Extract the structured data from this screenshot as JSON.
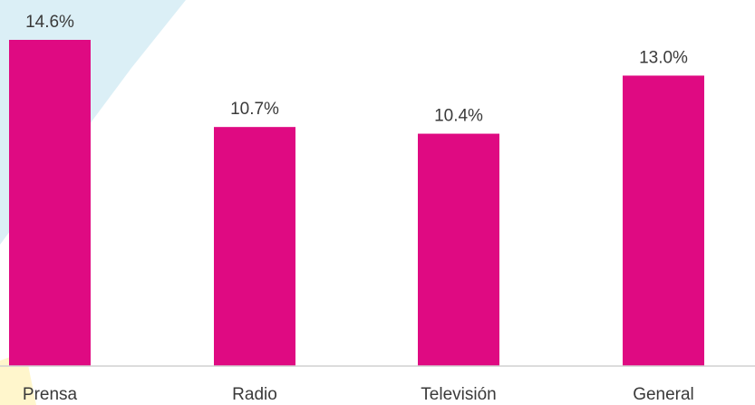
{
  "chart_data": {
    "type": "bar",
    "categories": [
      "Prensa",
      "Radio",
      "Televisión",
      "General"
    ],
    "values": [
      14.6,
      10.7,
      10.4,
      13.0
    ],
    "value_labels": [
      "14.6%",
      "10.7%",
      "10.4%",
      "13.0%"
    ],
    "ylim": [
      0,
      17
    ],
    "grid": false,
    "legend": "none"
  },
  "colors": {
    "bar": "#df0a82",
    "axis": "#d0d0d0",
    "text": "#3a3a3a",
    "background_accent_blue": "#dbeff6",
    "background_accent_yellow": "#fff6cc"
  }
}
